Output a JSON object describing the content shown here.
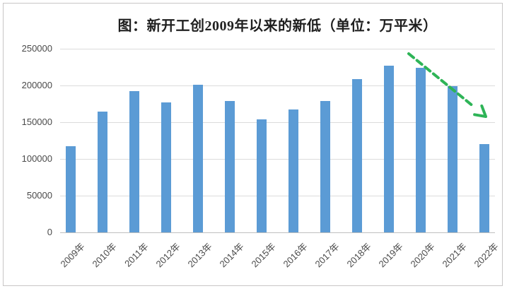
{
  "figure": {
    "title": "图：新开工创2009年以来的新低（单位：万平米）"
  },
  "chart_data": {
    "type": "bar",
    "title": "图：新开工创2009年以来的新低（单位：万平米）",
    "categories": [
      "2009年",
      "2010年",
      "2011年",
      "2012年",
      "2013年",
      "2014年",
      "2015年",
      "2016年",
      "2017年",
      "2018年",
      "2019年",
      "2020年",
      "2021年",
      "2022年"
    ],
    "values": [
      117000,
      164000,
      192000,
      177000,
      201000,
      179000,
      154000,
      167000,
      179000,
      209000,
      227000,
      224000,
      199000,
      120000
    ],
    "xlabel": "",
    "ylabel": "",
    "ylim": [
      0,
      250000
    ],
    "yticks": [
      0,
      50000,
      100000,
      150000,
      200000,
      250000
    ],
    "ytick_labels": [
      "0",
      "50000",
      "100000",
      "150000",
      "200000",
      "250000"
    ],
    "grid": true,
    "legend": "none",
    "bar_color": "#5B9BD5",
    "annotation": {
      "name": "downtrend-arrow",
      "style": "dashed",
      "color": "#2EB457",
      "from_category": "2020年",
      "to_category": "2022年"
    }
  },
  "colors": {
    "background": "#FFFFFF",
    "border": "#C8C6C6",
    "gridline": "#DCDCDC",
    "axis_line": "#BFBFBF",
    "tick_text": "#4A4A4A",
    "title_text": "#1F1F1F"
  }
}
